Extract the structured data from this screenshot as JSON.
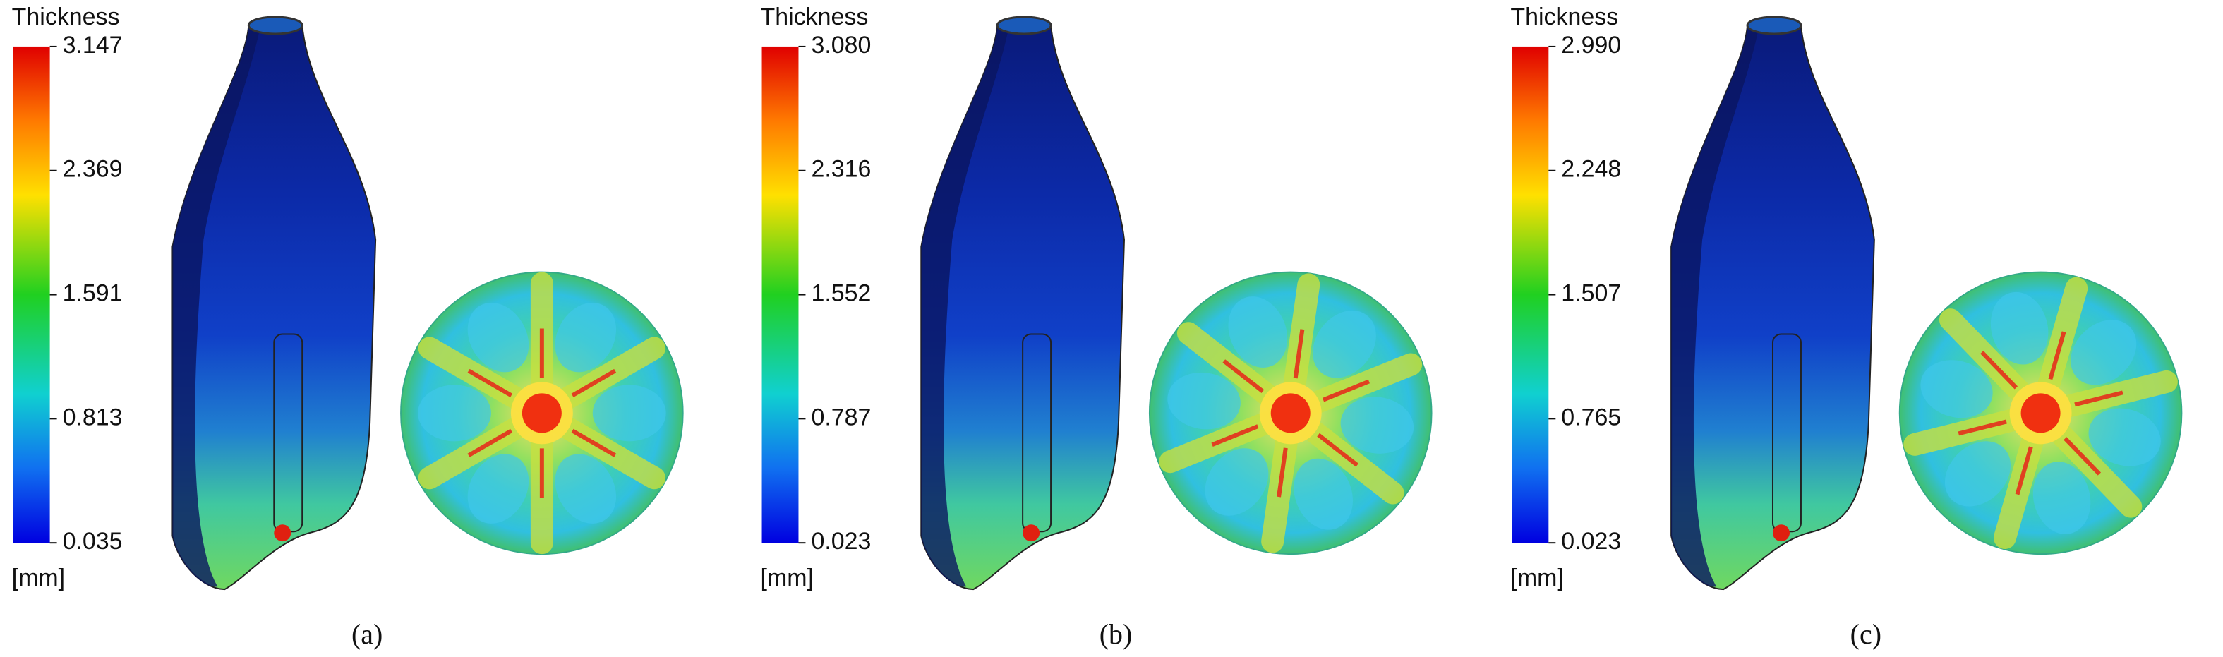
{
  "panels": [
    {
      "legend": {
        "title": "Thickness",
        "labels": [
          "3.147",
          "2.369",
          "1.591",
          "0.813",
          "0.035"
        ],
        "unit": "[mm]"
      },
      "caption": "(a)"
    },
    {
      "legend": {
        "title": "Thickness",
        "labels": [
          "3.080",
          "2.316",
          "1.552",
          "0.787",
          "0.023"
        ],
        "unit": "[mm]"
      },
      "caption": "(b)"
    },
    {
      "legend": {
        "title": "Thickness",
        "labels": [
          "2.990",
          "2.248",
          "1.507",
          "0.765",
          "0.023"
        ],
        "unit": "[mm]"
      },
      "caption": "(c)"
    }
  ]
}
